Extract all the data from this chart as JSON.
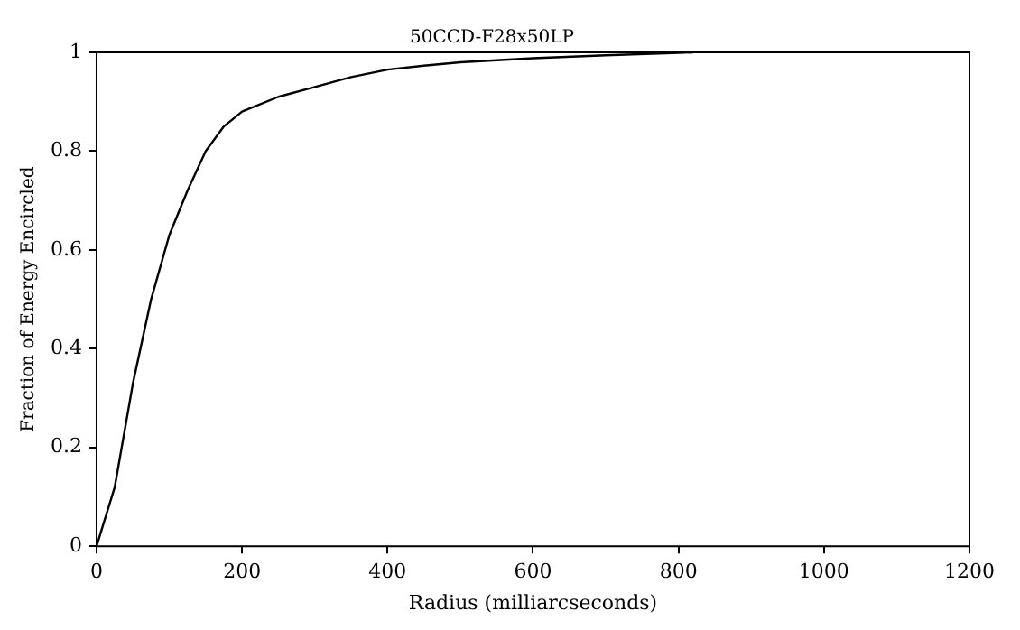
{
  "chart_data": {
    "type": "line",
    "title": "50CCD-F28x50LP",
    "xlabel": "Radius (milliarcseconds)",
    "ylabel": "Fraction of Energy Encircled",
    "x": [
      0,
      25,
      50,
      75,
      100,
      125,
      150,
      175,
      200,
      250,
      300,
      350,
      400,
      450,
      500,
      600,
      700,
      800,
      820
    ],
    "series": [
      {
        "color": "#000000",
        "values": [
          0,
          0.12,
          0.33,
          0.5,
          0.63,
          0.72,
          0.8,
          0.85,
          0.88,
          0.91,
          0.93,
          0.95,
          0.965,
          0.973,
          0.98,
          0.988,
          0.994,
          0.999,
          1.0
        ]
      }
    ],
    "xlim": [
      0,
      1200
    ],
    "xticks": [
      0,
      200,
      400,
      600,
      800,
      1000,
      1200
    ],
    "ylim": [
      0,
      1
    ],
    "yticks": [
      0,
      0.2,
      0.4,
      0.6,
      0.8,
      1
    ],
    "grid": false,
    "legend": false,
    "marker": "none",
    "line_style": "solid"
  }
}
